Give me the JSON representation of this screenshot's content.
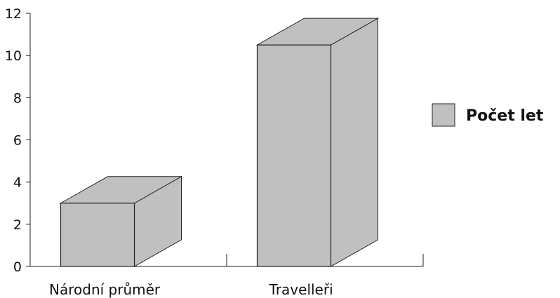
{
  "chart_data": {
    "type": "bar",
    "style": "3d-column",
    "categories": [
      "Národní průměr",
      "Travelleři"
    ],
    "series": [
      {
        "name": "Počet let",
        "values": [
          3,
          10.5
        ],
        "color": "#c0c0c0"
      }
    ],
    "ylim": [
      0,
      12
    ],
    "yticks": [
      "0",
      "2",
      "4",
      "6",
      "8",
      "10",
      "12"
    ],
    "grid": false,
    "legend_position": "right"
  }
}
